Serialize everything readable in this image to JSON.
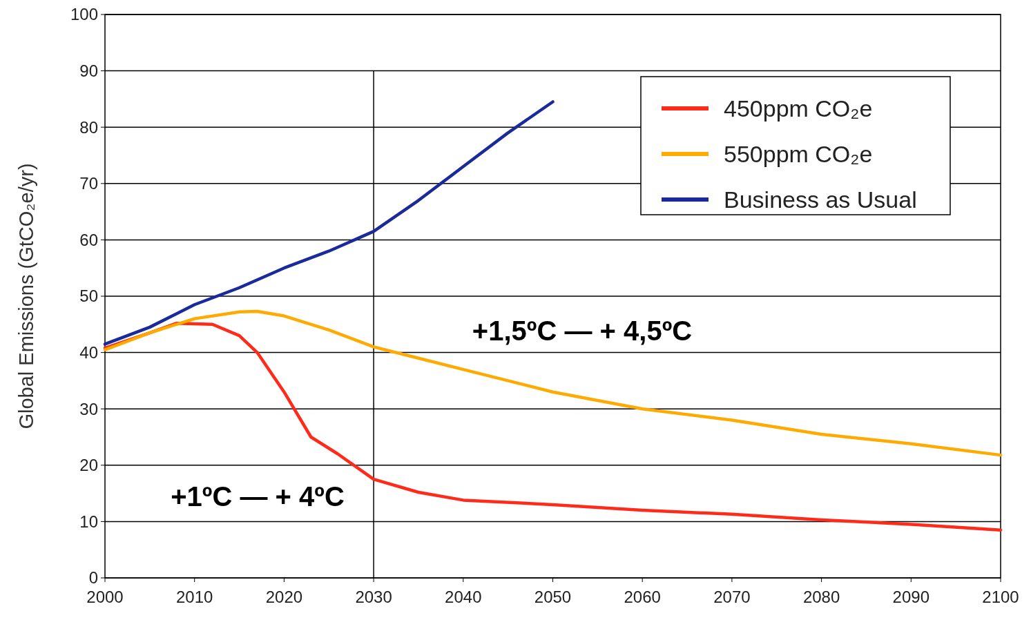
{
  "chart_data": {
    "type": "line",
    "xlabel": null,
    "ylabel": "Global Emissions (GtCO₂e/yr)",
    "xlim": [
      2000,
      2100
    ],
    "xticks": [
      2000,
      2010,
      2020,
      2030,
      2040,
      2050,
      2060,
      2070,
      2080,
      2090,
      2100
    ],
    "ylim": [
      0,
      100
    ],
    "yticks": [
      0,
      10,
      20,
      30,
      40,
      50,
      60,
      70,
      80,
      90,
      100
    ],
    "grid": "y",
    "legend": "top right",
    "line_style": "solid",
    "series": [
      {
        "name": "450ppm CO₂e",
        "color": "#ff2a1a",
        "x": [
          2000,
          2005,
          2008,
          2012,
          2015,
          2017,
          2020,
          2023,
          2026,
          2030,
          2035,
          2040,
          2050,
          2060,
          2070,
          2080,
          2090,
          2100
        ],
        "values": [
          40.8,
          43.5,
          45.2,
          45,
          43,
          40,
          33,
          25,
          22,
          17.5,
          15.2,
          13.8,
          13,
          12,
          11.3,
          10.3,
          9.5,
          8.5
        ]
      },
      {
        "name": "550ppm CO₂e",
        "color": "#ffaa00",
        "x": [
          2000,
          2005,
          2010,
          2015,
          2017,
          2020,
          2025,
          2030,
          2035,
          2040,
          2050,
          2060,
          2070,
          2080,
          2090,
          2100
        ],
        "values": [
          40.5,
          43.5,
          46,
          47.2,
          47.3,
          46.5,
          44,
          41,
          39,
          37,
          33,
          30,
          28,
          25.5,
          23.8,
          21.8
        ]
      },
      {
        "name": "Business as Usual",
        "color": "#1a2a9a",
        "x": [
          2000,
          2005,
          2010,
          2015,
          2020,
          2025,
          2030,
          2035,
          2040,
          2045,
          2050
        ],
        "values": [
          41.5,
          44.5,
          48.5,
          51.5,
          55,
          58,
          61.5,
          67,
          73,
          79,
          84.5
        ]
      }
    ],
    "ref_lines": [
      {
        "axis": "x",
        "value": 2030,
        "color": "#000000"
      }
    ],
    "annotations": [
      "+1ºC — + 4ºC",
      "+1,5ºC — + 4,5ºC"
    ]
  }
}
